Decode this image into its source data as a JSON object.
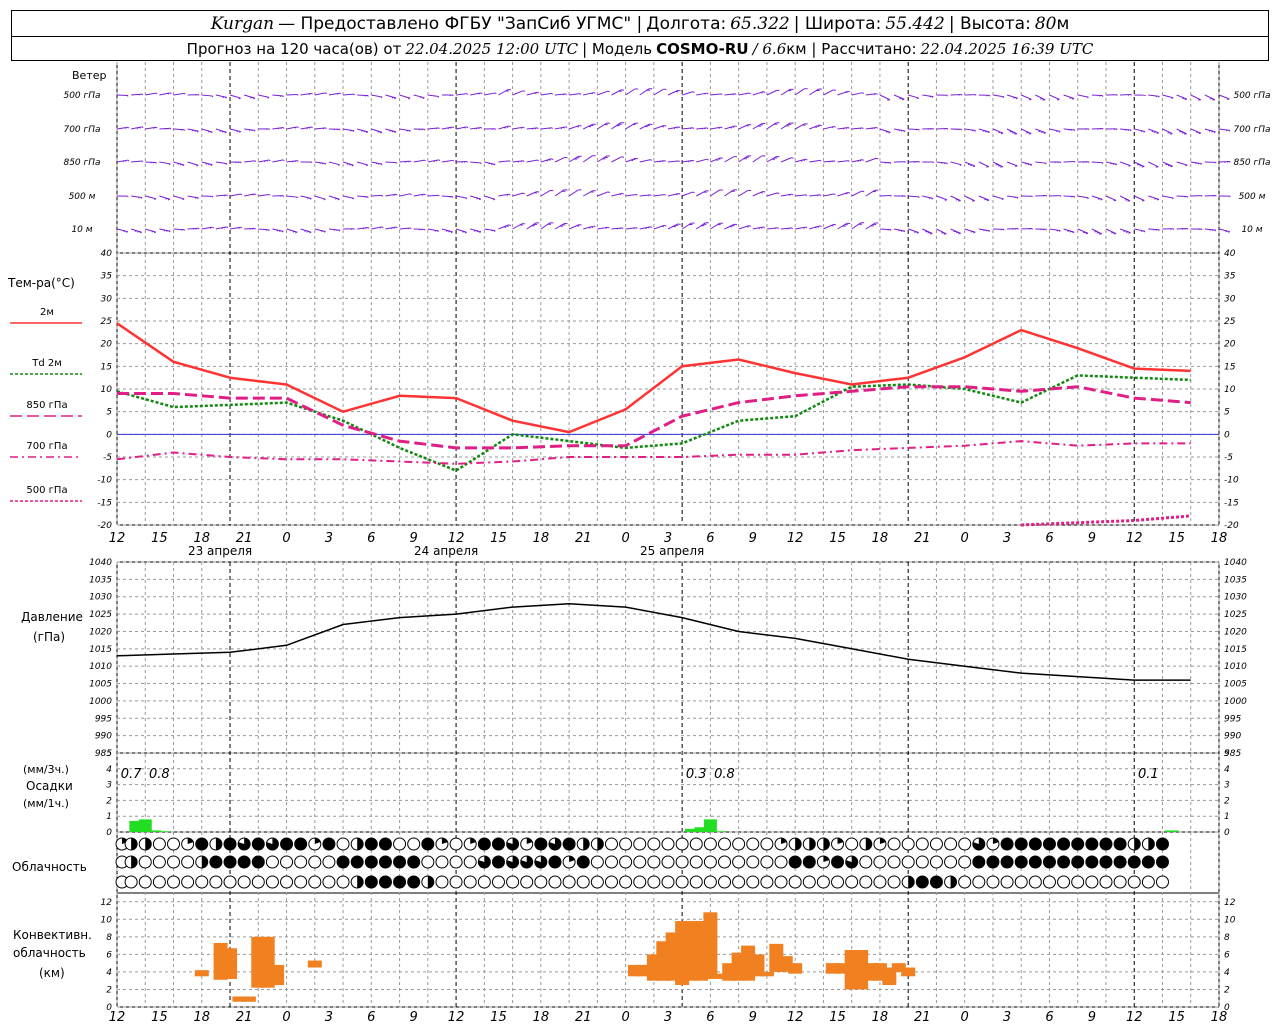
{
  "header": {
    "city": "Kurgan",
    "provider": "— Предоставлено ФГБУ \"ЗапСиб УГМС\" |",
    "lon_label": "Долгота:",
    "lon_value": "65.322",
    "lat_label": "| Широта:",
    "lat_value": "55.442",
    "alt_label": "| Высота:",
    "alt_value": "80",
    "alt_unit": "м",
    "forecast_label": "Прогноз на 120 часа(ов) от",
    "forecast_start": "22.04.2025 12:00 UTC",
    "model_label": "| Модель",
    "model_name": "COSMO-RU",
    "model_res": "/ 6.6",
    "model_res_unit": "км | Рассчитано:",
    "calc_time": "22.04.2025 16:39 UTC"
  },
  "colors": {
    "wind": "#7a1fd6",
    "t2m": "#ff3333",
    "td2m": "#118811",
    "t850": "#e01f86",
    "t700": "#e01f86",
    "t500": "#e01f86",
    "pressure": "#000000",
    "precip": "#22dd22",
    "convective": "#f08020",
    "grid": "#999999",
    "zero_line": "#3333dd"
  },
  "labels": {
    "wind": "Ветер",
    "wind_levels": [
      "500 гПа",
      "700 гПа",
      "850 гПа",
      "500 м",
      "10 м"
    ],
    "temp_title": "Тем-ра(°С)",
    "temp_legend": [
      "2м",
      "Td 2м",
      "850 гПа",
      "700 гПа",
      "500 гПа"
    ],
    "pressure_title": "Давление",
    "pressure_unit": "(гПа)",
    "precip_unit_top": "(мм/3ч.)",
    "precip_title": "Осадки",
    "precip_unit_bottom": "(мм/1ч.)",
    "cloud_title": "Облачность",
    "conv_title_1": "Конвективн.",
    "conv_title_2": "облачность",
    "conv_unit": "(км)"
  },
  "chart_data": [
    {
      "name": "wind",
      "type": "table",
      "levels": [
        "500 гПа",
        "700 гПа",
        "850 гПа",
        "500 м",
        "10 м"
      ]
    },
    {
      "name": "temperature",
      "type": "line",
      "ylim": [
        -20,
        40
      ],
      "yticks": [
        -20,
        -15,
        -10,
        -5,
        0,
        5,
        10,
        15,
        20,
        25,
        30,
        35,
        40
      ],
      "x": [
        0,
        6,
        12,
        18,
        24,
        30,
        36,
        42,
        48,
        54,
        60,
        66,
        72,
        78,
        84,
        90,
        96,
        102,
        108,
        114
      ],
      "series": [
        {
          "name": "2м",
          "values": [
            24.5,
            16,
            12.5,
            11,
            5,
            8.5,
            8,
            3,
            0.5,
            5.5,
            15,
            16.5,
            13.5,
            11,
            12.5,
            17,
            23,
            19,
            14.5,
            14
          ]
        },
        {
          "name": "Td 2м",
          "values": [
            9.5,
            6,
            6.5,
            7,
            3,
            -3,
            -8,
            0,
            -1.5,
            -3,
            -2,
            3,
            4,
            10.5,
            11,
            10,
            7,
            13,
            12.5,
            12
          ]
        },
        {
          "name": "850 гПа",
          "values": [
            9,
            9,
            8,
            8,
            2,
            -1.5,
            -3,
            -3,
            -2.5,
            -2.5,
            4,
            7,
            8.5,
            9.5,
            10.5,
            10.5,
            9.5,
            10.5,
            8,
            7
          ]
        },
        {
          "name": "700 гПа",
          "values": [
            -5.5,
            -4,
            -5,
            -5.5,
            -5.5,
            -6,
            -6.5,
            -6,
            -5,
            -5,
            -5,
            -4.5,
            -4.5,
            -3.5,
            -3,
            -2.5,
            -1.5,
            -2.5,
            -2,
            -2
          ]
        },
        {
          "name": "500 гПа",
          "values": [
            null,
            null,
            null,
            null,
            null,
            null,
            null,
            null,
            null,
            null,
            null,
            null,
            null,
            null,
            null,
            null,
            -20,
            -19.5,
            -19,
            -18
          ]
        }
      ]
    },
    {
      "name": "pressure",
      "type": "line",
      "ylim": [
        985,
        1040
      ],
      "yticks": [
        985,
        990,
        995,
        1000,
        1005,
        1010,
        1015,
        1020,
        1025,
        1030,
        1035,
        1040
      ],
      "x": [
        0,
        6,
        12,
        18,
        24,
        30,
        36,
        42,
        48,
        54,
        60,
        66,
        72,
        78,
        84,
        90,
        96,
        102,
        108,
        114
      ],
      "series": [
        {
          "name": "pressure",
          "values": [
            1013,
            1013.5,
            1014,
            1016,
            1022,
            1024,
            1025,
            1027,
            1028,
            1027,
            1024,
            1020,
            1018,
            1015,
            1012,
            1010,
            1008,
            1007,
            1006,
            1006
          ]
        }
      ]
    },
    {
      "name": "precipitation",
      "type": "bar",
      "ylim": [
        0,
        5
      ],
      "yticks": [
        0,
        1,
        2,
        3,
        4,
        5
      ],
      "x": [
        2,
        3,
        4,
        5,
        61,
        62,
        63,
        64,
        112
      ],
      "values": [
        0.7,
        0.8,
        0.1,
        0.05,
        0.2,
        0.3,
        0.8,
        0.05,
        0.1
      ],
      "annotations": [
        {
          "x": 1.5,
          "text": "0.7"
        },
        {
          "x": 4.5,
          "text": "0.8"
        },
        {
          "x": 61.5,
          "text": "0.3"
        },
        {
          "x": 64.5,
          "text": "0.8"
        },
        {
          "x": 109.5,
          "text": "0.1"
        }
      ]
    },
    {
      "name": "cloudiness",
      "type": "table",
      "rows": 3,
      "columns": 75,
      "row_values": [
        [
          0.2,
          0.5,
          0.5,
          0,
          0,
          0.2,
          1,
          0.5,
          1,
          0.8,
          1,
          0.8,
          1,
          1,
          0.2,
          1,
          0,
          0.5,
          1,
          1,
          0,
          0,
          1,
          0.2,
          0,
          0.2,
          1,
          1,
          0.8,
          0.2,
          1,
          0.8,
          1,
          0.5,
          0.5,
          0,
          0,
          0,
          0,
          0,
          0,
          0,
          0,
          0,
          0,
          0,
          0,
          0.2,
          0.5,
          0.5,
          0.5,
          0.2,
          0,
          0.5,
          0.2,
          0,
          0,
          0,
          0,
          0,
          0,
          0.8,
          0.2,
          1,
          1,
          1,
          1,
          1,
          1,
          1,
          1,
          1,
          0.5,
          0.5,
          1
        ],
        [
          0,
          0.5,
          0,
          0,
          0,
          0,
          0.5,
          1,
          1,
          1,
          1,
          0,
          0,
          0,
          0,
          0,
          1,
          1,
          1,
          1,
          1,
          1,
          0,
          0,
          0,
          0,
          0.8,
          1,
          0.8,
          0.8,
          0.8,
          1,
          0.2,
          1,
          0,
          0,
          0,
          0,
          0,
          0,
          0,
          0,
          0,
          0,
          0,
          0,
          0,
          0,
          1,
          1,
          0.2,
          1,
          0.8,
          0,
          0,
          0,
          0,
          0,
          0,
          0,
          0,
          1,
          1,
          1,
          1,
          1,
          1,
          1,
          1,
          1,
          1,
          1,
          1,
          1,
          1
        ],
        [
          0,
          0,
          0,
          0,
          0,
          0,
          0,
          0,
          0,
          0,
          0,
          0,
          0,
          0,
          0,
          0,
          0,
          0.5,
          1,
          1,
          1,
          1,
          0.5,
          0,
          0,
          0,
          0,
          0,
          0,
          0,
          0,
          0,
          0,
          0,
          0,
          0,
          0,
          0,
          0,
          0,
          0,
          0,
          0,
          0,
          0,
          0,
          0,
          0,
          0,
          0,
          0,
          0,
          0,
          0,
          0,
          0,
          0.5,
          1,
          1,
          0.5,
          0,
          0,
          0,
          0,
          0,
          0,
          0,
          0,
          0,
          0,
          0,
          0,
          0,
          0,
          0
        ]
      ]
    },
    {
      "name": "convective_cloud",
      "type": "bar",
      "ylim": [
        0,
        13
      ],
      "yticks": [
        0,
        2,
        4,
        6,
        8,
        10,
        12
      ],
      "bars": [
        {
          "x": 9,
          "base": 3.5,
          "top": 4.2
        },
        {
          "x": 11,
          "base": 3.1,
          "top": 7.3
        },
        {
          "x": 12,
          "base": 3.2,
          "top": 6.7
        },
        {
          "x": 13,
          "base": 0.6,
          "top": 1.2
        },
        {
          "x": 14,
          "base": 0.6,
          "top": 1.2
        },
        {
          "x": 15,
          "base": 2.2,
          "top": 8.0
        },
        {
          "x": 16,
          "base": 2.2,
          "top": 8.0
        },
        {
          "x": 17,
          "base": 2.5,
          "top": 4.8
        },
        {
          "x": 21,
          "base": 4.5,
          "top": 5.3
        },
        {
          "x": 55,
          "base": 3.5,
          "top": 4.8
        },
        {
          "x": 56,
          "base": 3.5,
          "top": 4.8
        },
        {
          "x": 57,
          "base": 3.0,
          "top": 6.0
        },
        {
          "x": 58,
          "base": 3.0,
          "top": 7.5
        },
        {
          "x": 59,
          "base": 3.0,
          "top": 8.5
        },
        {
          "x": 60,
          "base": 2.5,
          "top": 9.8
        },
        {
          "x": 61,
          "base": 3.0,
          "top": 9.8
        },
        {
          "x": 62,
          "base": 3.0,
          "top": 9.8
        },
        {
          "x": 63,
          "base": 3.2,
          "top": 10.8
        },
        {
          "x": 64,
          "base": 3.2,
          "top": 3.8
        },
        {
          "x": 65,
          "base": 3.0,
          "top": 5.0
        },
        {
          "x": 66,
          "base": 3.0,
          "top": 6.2
        },
        {
          "x": 67,
          "base": 3.0,
          "top": 7.0
        },
        {
          "x": 68,
          "base": 3.5,
          "top": 6.0
        },
        {
          "x": 69,
          "base": 3.5,
          "top": 4.0
        },
        {
          "x": 70,
          "base": 4.0,
          "top": 7.2
        },
        {
          "x": 71,
          "base": 4.0,
          "top": 5.8
        },
        {
          "x": 72,
          "base": 3.8,
          "top": 5.0
        },
        {
          "x": 76,
          "base": 3.8,
          "top": 5.0
        },
        {
          "x": 77,
          "base": 3.8,
          "top": 5.0
        },
        {
          "x": 78,
          "base": 2.0,
          "top": 6.5
        },
        {
          "x": 79,
          "base": 2.0,
          "top": 6.5
        },
        {
          "x": 80,
          "base": 3.0,
          "top": 5.0
        },
        {
          "x": 81,
          "base": 3.0,
          "top": 5.0
        },
        {
          "x": 82,
          "base": 2.5,
          "top": 4.5
        },
        {
          "x": 83,
          "base": 4.0,
          "top": 5.0
        },
        {
          "x": 84,
          "base": 3.5,
          "top": 4.5
        }
      ]
    }
  ],
  "axis": {
    "hour_labels": [
      "12",
      "15",
      "18",
      "21",
      "0",
      "3",
      "6",
      "9",
      "12",
      "15",
      "18",
      "21",
      "0",
      "3",
      "6",
      "9",
      "12",
      "15",
      "18",
      "21",
      "0",
      "3",
      "6",
      "9",
      "12",
      "15",
      "18"
    ],
    "day_labels": [
      "23 апреля",
      "24 апреля",
      "25 апреля"
    ]
  }
}
